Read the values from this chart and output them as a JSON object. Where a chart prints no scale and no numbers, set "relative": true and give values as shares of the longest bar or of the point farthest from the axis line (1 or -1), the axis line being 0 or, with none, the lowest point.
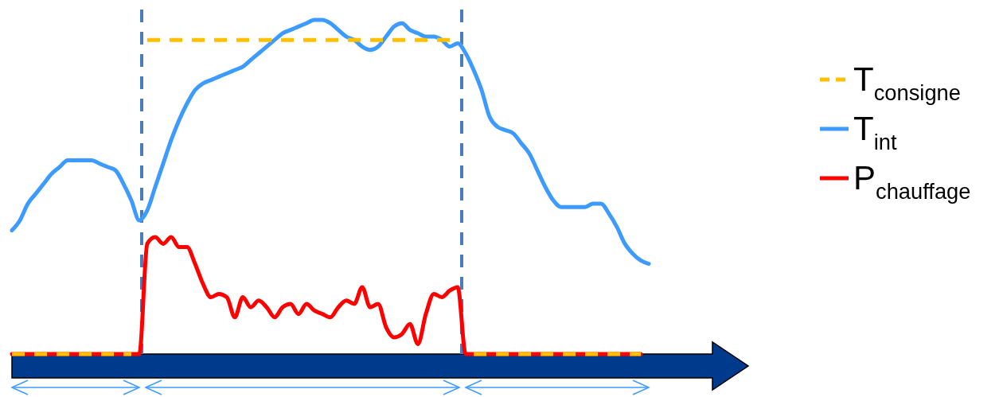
{
  "chart_data": {
    "type": "line",
    "relative": true,
    "legend": "right",
    "marker": "none",
    "categories": [
      null,
      null,
      null,
      null,
      null,
      null,
      null,
      null,
      null,
      null,
      null,
      null,
      null,
      null,
      null,
      null,
      null,
      null,
      null,
      null,
      null,
      null,
      null,
      null,
      null,
      null,
      null,
      null,
      null,
      null,
      null,
      null,
      null,
      null,
      null,
      null,
      null,
      null,
      null,
      null,
      null,
      null,
      null,
      null,
      null,
      null,
      null,
      null,
      null,
      null,
      null,
      null,
      null,
      null,
      null,
      null,
      null,
      null,
      null,
      null,
      null,
      null,
      null,
      null,
      null,
      null,
      null,
      null,
      null,
      null,
      null,
      null,
      null,
      null,
      null,
      null,
      null,
      null,
      null,
      null,
      null
    ],
    "series": [
      {
        "name": "T$_{consigne}$",
        "color": "#ffc000",
        "line_style": "dashed",
        "values": [
          0,
          0,
          0,
          0,
          0,
          0,
          0,
          0,
          0,
          0,
          0,
          0,
          0,
          0,
          0,
          0,
          null,
          0.94,
          0.94,
          0.94,
          0.94,
          0.94,
          0.94,
          0.94,
          0.94,
          0.94,
          0.94,
          0.94,
          0.94,
          0.94,
          0.94,
          0.94,
          0.94,
          0.94,
          0.94,
          0.94,
          0.94,
          0.94,
          0.94,
          0.94,
          0.94,
          0.94,
          0.94,
          0.94,
          0.94,
          0.94,
          0.94,
          0.94,
          0.94,
          0.94,
          0.94,
          0.94,
          0.94,
          0.94,
          0.94,
          0.94,
          0.94,
          null,
          0,
          0,
          0,
          0,
          0,
          0,
          0,
          0,
          0,
          0,
          0,
          0,
          0,
          0,
          0,
          0,
          0,
          0,
          0,
          0,
          0,
          0,
          null
        ]
      },
      {
        "name": "T$_{int}$",
        "color": "#3d9bff",
        "line_style": "solid",
        "values": [
          0.37,
          0.4,
          0.45,
          0.48,
          0.51,
          0.54,
          0.56,
          0.58,
          0.58,
          0.58,
          0.58,
          0.57,
          0.56,
          0.55,
          0.51,
          0.46,
          0.4,
          0.43,
          0.5,
          0.57,
          0.64,
          0.7,
          0.75,
          0.79,
          0.81,
          0.82,
          0.83,
          0.84,
          0.85,
          0.86,
          0.88,
          0.9,
          0.92,
          0.94,
          0.96,
          0.97,
          0.98,
          0.99,
          1.0,
          1.0,
          0.99,
          0.97,
          0.95,
          0.94,
          0.92,
          0.91,
          0.92,
          0.95,
          0.98,
          0.99,
          0.97,
          0.96,
          0.95,
          0.95,
          0.94,
          0.92,
          0.93,
          0.9,
          0.85,
          0.79,
          0.71,
          0.68,
          0.67,
          0.66,
          0.63,
          0.6,
          0.55,
          0.5,
          0.46,
          0.44,
          0.44,
          0.44,
          0.44,
          0.45,
          0.45,
          0.42,
          0.38,
          0.33,
          0.3,
          0.28,
          0.27
        ]
      },
      {
        "name": "P$_{chauffage}$",
        "color": "#ff0000",
        "line_style": "solid",
        "values": [
          0,
          0,
          0,
          0,
          0,
          0,
          0,
          0,
          0,
          0,
          0,
          0,
          0,
          0,
          0,
          0,
          0,
          0.33,
          0.35,
          0.33,
          0.35,
          0.32,
          0.32,
          0.27,
          0.21,
          0.17,
          0.18,
          0.17,
          0.11,
          0.17,
          0.14,
          0.16,
          0.14,
          0.11,
          0.14,
          0.15,
          0.12,
          0.15,
          0.13,
          0.12,
          0.11,
          0.14,
          0.16,
          0.15,
          0.2,
          0.14,
          0.15,
          0.08,
          0.05,
          0.06,
          0.09,
          0.03,
          0.12,
          0.18,
          0.17,
          0.19,
          0.2,
          0,
          0,
          0,
          0,
          0,
          0,
          0,
          0,
          0,
          0,
          0,
          0,
          0,
          0,
          0,
          0,
          0,
          0,
          0,
          0,
          0,
          0,
          0,
          null
        ]
      }
    ]
  }
}
